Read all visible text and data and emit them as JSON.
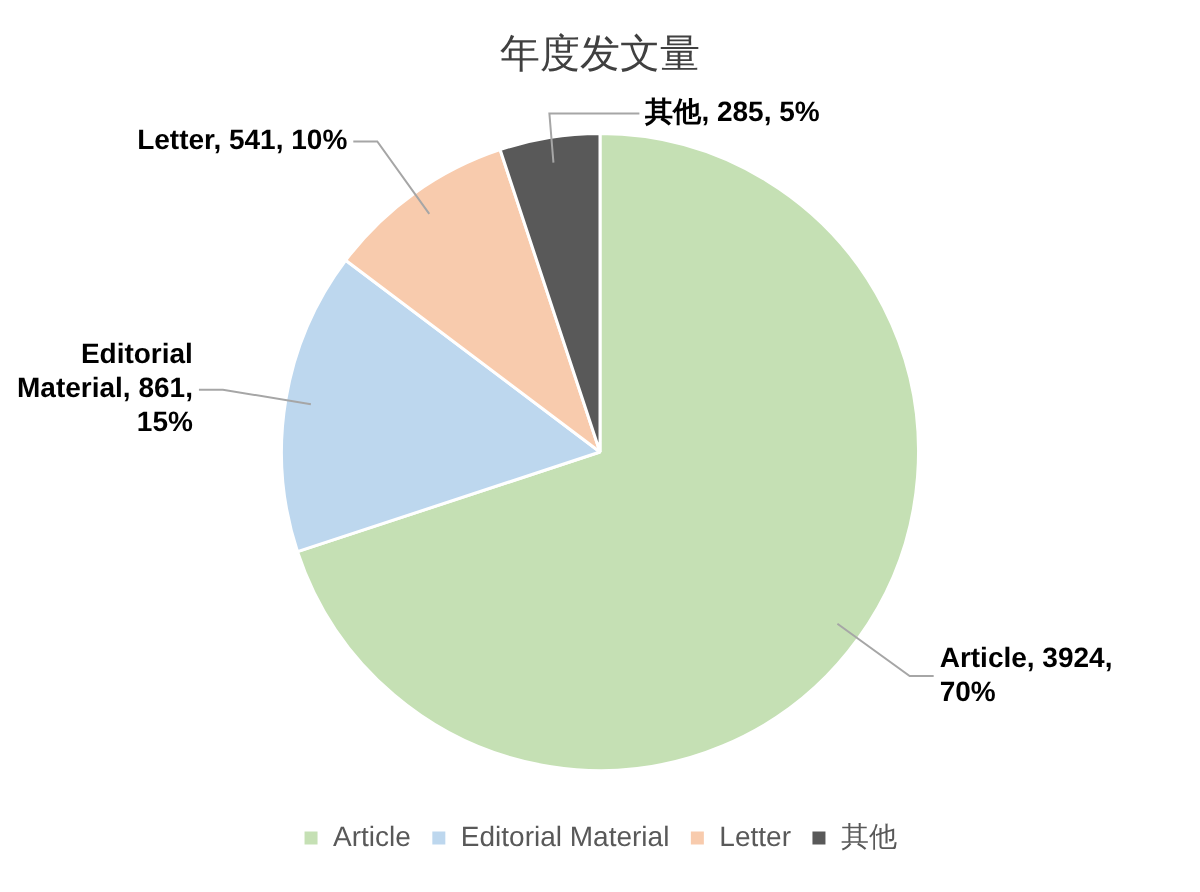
{
  "chart_data": {
    "type": "pie",
    "title": "年度发文量",
    "categories": [
      "Article",
      "Editorial Material",
      "Letter",
      "其他"
    ],
    "values": [
      3924,
      861,
      541,
      285
    ],
    "colors": [
      "#c5e0b4",
      "#bdd7ee",
      "#f8cbad",
      "#595959"
    ],
    "value_labels": [
      "Article, 3924, 70%",
      "Editorial Material, 861, 15%",
      "Letter, 541, 10%",
      "其他, 285, 5%"
    ],
    "legend": "bottom"
  }
}
